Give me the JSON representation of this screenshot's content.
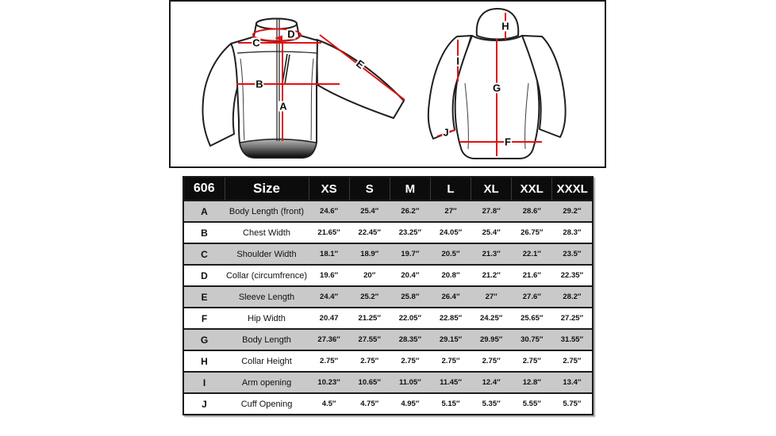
{
  "colors": {
    "accent_red": "#e11212",
    "outline_black": "#1f1f1f",
    "header_bg": "#0c0c0c",
    "row_gray": "#c9c9c9",
    "row_white": "#ffffff"
  },
  "diagram": {
    "front_view": "jacket-front-with-measurements",
    "back_view": "jacket-back-with-measurements",
    "labels": {
      "A": "A",
      "B": "B",
      "C": "C",
      "D": "D",
      "E": "E",
      "F": "F",
      "G": "G",
      "H": "H",
      "I": "I",
      "J": "J"
    }
  },
  "table": {
    "model": "606",
    "size_header": "Size",
    "sizes": [
      "XS",
      "S",
      "M",
      "L",
      "XL",
      "XXL",
      "XXXL"
    ],
    "rows": [
      {
        "letter": "A",
        "name": "Body Length (front)",
        "values": [
          "24.6″",
          "25.4″",
          "26.2″",
          "27″",
          "27.8″",
          "28.6″",
          "29.2″"
        ]
      },
      {
        "letter": "B",
        "name": "Chest Width",
        "values": [
          "21.65″",
          "22.45″",
          "23.25″",
          "24.05″",
          "25.4″",
          "26.75″",
          "28.3″"
        ]
      },
      {
        "letter": "C",
        "name": "Shoulder Width",
        "values": [
          "18.1″",
          "18.9″",
          "19.7″",
          "20.5″",
          "21.3″",
          "22.1″",
          "23.5″"
        ]
      },
      {
        "letter": "D",
        "name": "Collar (circumfrence)",
        "values": [
          "19.6″",
          "20″",
          "20.4″",
          "20.8″",
          "21.2″",
          "21.6″",
          "22.35″"
        ]
      },
      {
        "letter": "E",
        "name": "Sleeve Length",
        "values": [
          "24.4″",
          "25.2″",
          "25.8″",
          "26.4″",
          "27″",
          "27.6″",
          "28.2″"
        ]
      },
      {
        "letter": "F",
        "name": "Hip Width",
        "values": [
          "20.47",
          "21.25″",
          "22.05″",
          "22.85″",
          "24.25″",
          "25.65″",
          "27.25″"
        ]
      },
      {
        "letter": "G",
        "name": "Body Length",
        "values": [
          "27.36″",
          "27.55″",
          "28.35″",
          "29.15″",
          "29.95″",
          "30.75″",
          "31.55″"
        ]
      },
      {
        "letter": "H",
        "name": "Collar Height",
        "values": [
          "2.75″",
          "2.75″",
          "2.75″",
          "2.75″",
          "2.75″",
          "2.75″",
          "2.75″"
        ]
      },
      {
        "letter": "I",
        "name": "Arm opening",
        "values": [
          "10.23″",
          "10.65″",
          "11.05″",
          "11.45″",
          "12.4″",
          "12.8″",
          "13.4″"
        ]
      },
      {
        "letter": "J",
        "name": "Cuff Opening",
        "values": [
          "4.5″",
          "4.75″",
          "4.95″",
          "5.15″",
          "5.35″",
          "5.55″",
          "5.75″"
        ]
      }
    ]
  }
}
